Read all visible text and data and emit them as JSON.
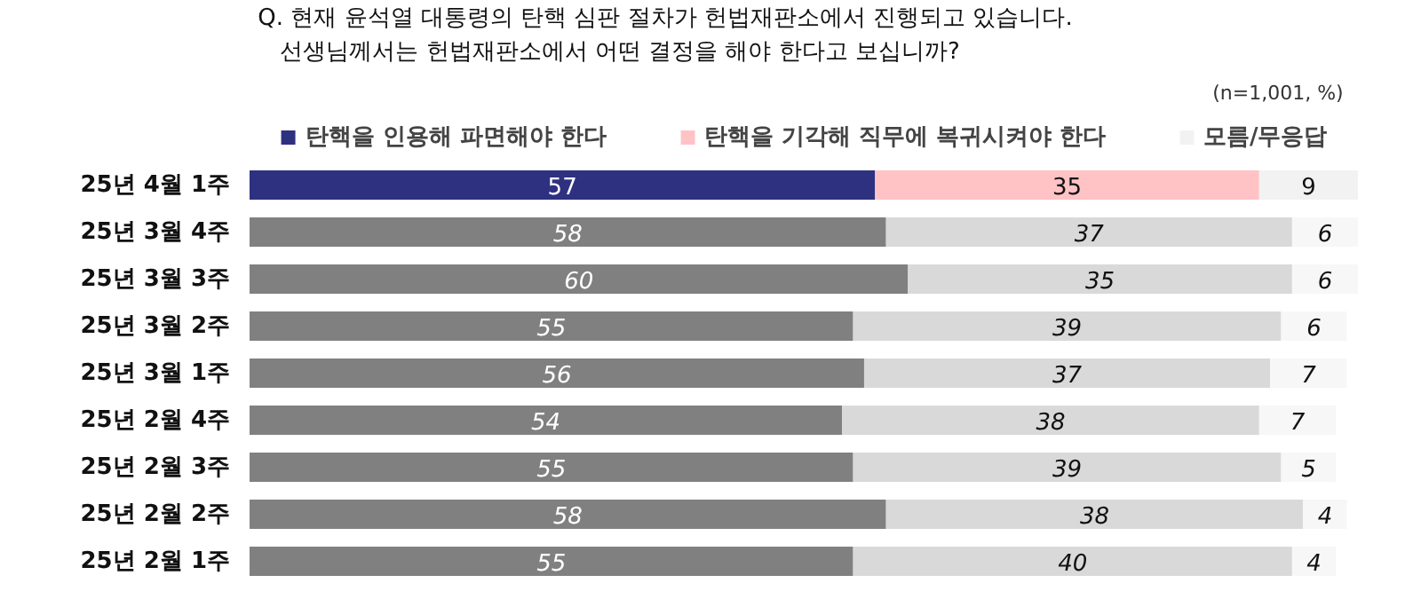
{
  "chart_data": {
    "type": "bar",
    "orientation": "horizontal",
    "stacked": true,
    "title": "Q. 현재 윤석열 대통령의 탄핵 심판 절차가 헌법재판소에서 진행되고 있습니다.",
    "subtitle": "선생님께서는 헌법재판소에서 어떤 결정을 해야 한다고 보십니까?",
    "annotations": [
      "(n=1,001,  %)"
    ],
    "categories": [
      "25년 4월 1주",
      "25년 3월 4주",
      "25년 3월 3주",
      "25년 3월 2주",
      "25년 3월 1주",
      "25년 2월 4주",
      "25년 2월 3주",
      "25년 2월 2주",
      "25년 2월 1주"
    ],
    "series": [
      {
        "name": "탄핵을 인용해 파면해야 한다",
        "colors": [
          "#2e3180",
          "#808080",
          "#808080",
          "#808080",
          "#808080",
          "#808080",
          "#808080",
          "#808080",
          "#808080"
        ],
        "values": [
          57,
          58,
          60,
          55,
          56,
          54,
          55,
          58,
          55
        ]
      },
      {
        "name": "탄핵을 기각해 직무에 복귀시켜야 한다",
        "colors": [
          "#ffc3c6",
          "#d9d9d9",
          "#d9d9d9",
          "#d9d9d9",
          "#d9d9d9",
          "#d9d9d9",
          "#d9d9d9",
          "#d9d9d9",
          "#d9d9d9"
        ],
        "values": [
          35,
          37,
          35,
          39,
          37,
          38,
          39,
          38,
          40
        ]
      },
      {
        "name": "모름/무응답",
        "colors": [
          "#f2f2f2",
          "#f7f7f7",
          "#f7f7f7",
          "#f7f7f7",
          "#f7f7f7",
          "#f7f7f7",
          "#f7f7f7",
          "#f7f7f7",
          "#f7f7f7"
        ],
        "values": [
          9,
          6,
          6,
          6,
          7,
          7,
          5,
          4,
          4
        ]
      }
    ],
    "data_labels": true,
    "legend": "top",
    "grid": false
  }
}
